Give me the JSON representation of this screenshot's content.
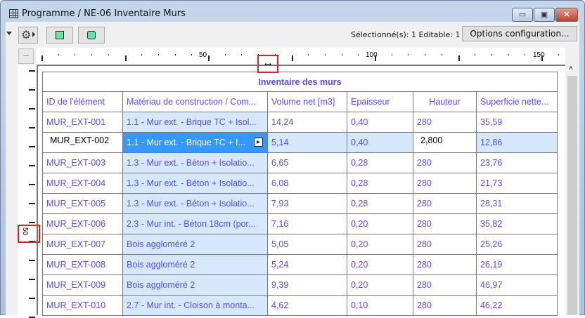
{
  "window": {
    "title": "Programme / NE-06 Inventaire Murs",
    "minimize": "▭",
    "maximize": "▣",
    "close": "✕"
  },
  "toolbar": {
    "status": "Sélectionné(s): 1  Editable: 1",
    "options_label": "Options configuration...",
    "more_label": "..."
  },
  "ruler": {
    "labels": [
      "50",
      "100",
      "150"
    ],
    "vlabel": "50"
  },
  "table": {
    "title": "Inventaire des murs",
    "headers": [
      "ID de l'élément",
      "Matériau de construction / Com...",
      "Volume net [m3]",
      "Epaisseur",
      "Hauteur",
      "Superficie nette..."
    ],
    "rows": [
      [
        "MUR_EXT-001",
        "1.1 - Mur ext. - Brique TC + Isol...",
        "14,24",
        "0,40",
        "280",
        "35,59"
      ],
      [
        "MUR_EXT-002",
        "1.1 - Mur ext. - Brique TC + I...",
        "5,14",
        "0,40",
        "2,800",
        "12,86"
      ],
      [
        "MUR_EXT-003",
        "1.3 - Mur ext. - Béton + Isolatio...",
        "6,65",
        "0,28",
        "280",
        "23,76"
      ],
      [
        "MUR_EXT-004",
        "1.3 - Mur ext. - Béton + Isolatio...",
        "6,08",
        "0,28",
        "280",
        "21,73"
      ],
      [
        "MUR_EXT-005",
        "1.3 - Mur ext. - Béton + Isolatio...",
        "7,93",
        "0,28",
        "280",
        "28,31"
      ],
      [
        "MUR_EXT-006",
        "2.3 - Mur int. - Béton 18cm (por...",
        "7,16",
        "0,20",
        "280",
        "35,82"
      ],
      [
        "MUR_EXT-007",
        "Bois aggloméré 2",
        "5,05",
        "0,20",
        "280",
        "25,26"
      ],
      [
        "MUR_EXT-008",
        "Bois aggloméré 2",
        "5,24",
        "0,20",
        "280",
        "26,19"
      ],
      [
        "MUR_EXT-009",
        "Bois aggloméré 2",
        "9,39",
        "0,20",
        "280",
        "46,97"
      ],
      [
        "MUR_EXT-010",
        "2.7 - Mur int. - Cloison à monta...",
        "4,62",
        "0,10",
        "280",
        "46,22"
      ]
    ]
  },
  "colors": {
    "text": "#5b4cf2",
    "material_bg": "#d6e9fc",
    "selection": "#3399ff",
    "highlight": "#e02020"
  }
}
